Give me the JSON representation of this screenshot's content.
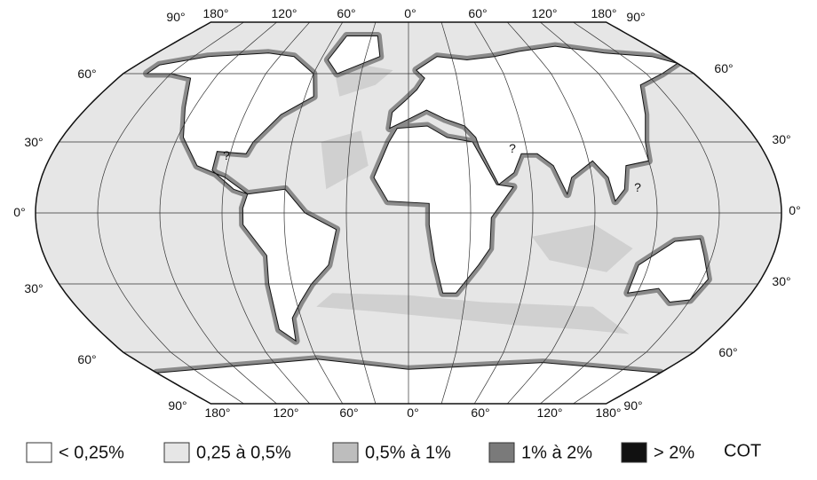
{
  "map": {
    "top_labels": [
      "90°",
      "180°",
      "120°",
      "60°",
      "0°",
      "60°",
      "120°",
      "180°",
      "90°"
    ],
    "bottom_labels": [
      "90°",
      "180°",
      "120°",
      "60°",
      "0°",
      "60°",
      "120°",
      "180°",
      "90°"
    ],
    "left_labels": [
      "60°",
      "30°",
      "0°",
      "30°",
      "60°"
    ],
    "right_labels": [
      "60°",
      "30°",
      "0°",
      "30°",
      "60°"
    ],
    "question_marks": [
      "?",
      "?",
      "?"
    ]
  },
  "legend": {
    "items": [
      {
        "label": "< 0,25%",
        "color": "#ffffff"
      },
      {
        "label": "0,25 à 0,5%",
        "color": "#e6e6e6"
      },
      {
        "label": "0,5% à 1%",
        "color": "#bdbdbd"
      },
      {
        "label": "1% à 2%",
        "color": "#7a7a7a"
      },
      {
        "label": "> 2%",
        "color": "#111111"
      }
    ],
    "unit": "COT"
  }
}
